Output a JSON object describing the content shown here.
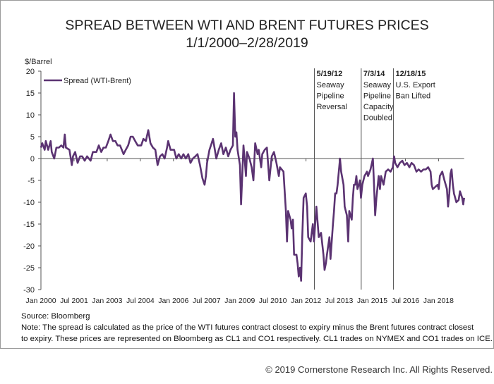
{
  "chart_data": {
    "type": "line",
    "title": "SPREAD BETWEEN WTI AND BRENT FUTURES PRICES",
    "subtitle": "1/1/2000–2/28/2019",
    "ylabel": "$/Barrel",
    "xlabel": "",
    "ylim": [
      -30,
      20
    ],
    "yticks": [
      20,
      15,
      10,
      5,
      0,
      -5,
      -10,
      -15,
      -20,
      -25,
      -30
    ],
    "xlim": [
      2000.0,
      2019.16
    ],
    "xticks": [
      {
        "label": "Jan 2000",
        "x": 2000.0
      },
      {
        "label": "Jul 2001",
        "x": 2001.5
      },
      {
        "label": "Jan 2003",
        "x": 2003.0
      },
      {
        "label": "Jul 2004",
        "x": 2004.5
      },
      {
        "label": "Jan 2006",
        "x": 2006.0
      },
      {
        "label": "Jul 2007",
        "x": 2007.5
      },
      {
        "label": "Jan 2009",
        "x": 2009.0
      },
      {
        "label": "Jul 2010",
        "x": 2010.5
      },
      {
        "label": "Jan 2012",
        "x": 2012.0
      },
      {
        "label": "Jul 2013",
        "x": 2013.5
      },
      {
        "label": "Jan 2015",
        "x": 2015.0
      },
      {
        "label": "Jul 2016",
        "x": 2016.5
      },
      {
        "label": "Jan 2018",
        "x": 2018.0
      }
    ],
    "grid": false,
    "legend": {
      "placement": "top-left",
      "entries": [
        "Spread (WTI-Brent)"
      ]
    },
    "series": [
      {
        "name": "Spread (WTI-Brent)",
        "color": "#5b3372",
        "points": [
          [
            2000.0,
            2.5
          ],
          [
            2000.06,
            3.5
          ],
          [
            2000.17,
            2
          ],
          [
            2000.22,
            4
          ],
          [
            2000.33,
            2
          ],
          [
            2000.44,
            4
          ],
          [
            2000.49,
            1.5
          ],
          [
            2000.6,
            0
          ],
          [
            2000.7,
            2.5
          ],
          [
            2000.81,
            2.5
          ],
          [
            2000.92,
            3
          ],
          [
            2001.02,
            2.5
          ],
          [
            2001.08,
            5.5
          ],
          [
            2001.13,
            2.5
          ],
          [
            2001.29,
            2
          ],
          [
            2001.4,
            -1.5
          ],
          [
            2001.45,
            0.5
          ],
          [
            2001.55,
            1.5
          ],
          [
            2001.66,
            -1
          ],
          [
            2001.77,
            0.5
          ],
          [
            2001.87,
            0.5
          ],
          [
            2001.98,
            -0.5
          ],
          [
            2002.09,
            0.5
          ],
          [
            2002.25,
            -0.5
          ],
          [
            2002.35,
            1.5
          ],
          [
            2002.51,
            1.5
          ],
          [
            2002.62,
            3
          ],
          [
            2002.73,
            1.5
          ],
          [
            2002.83,
            2.5
          ],
          [
            2002.94,
            2.5
          ],
          [
            2003.05,
            4
          ],
          [
            2003.15,
            5.5
          ],
          [
            2003.26,
            4
          ],
          [
            2003.37,
            4
          ],
          [
            2003.47,
            3
          ],
          [
            2003.58,
            3
          ],
          [
            2003.74,
            1
          ],
          [
            2003.84,
            2
          ],
          [
            2003.95,
            3
          ],
          [
            2004.06,
            5
          ],
          [
            2004.16,
            5
          ],
          [
            2004.27,
            4
          ],
          [
            2004.38,
            3
          ],
          [
            2004.54,
            3
          ],
          [
            2004.64,
            4.5
          ],
          [
            2004.75,
            4
          ],
          [
            2004.86,
            6.5
          ],
          [
            2004.96,
            3.5
          ],
          [
            2005.07,
            2.5
          ],
          [
            2005.18,
            2
          ],
          [
            2005.28,
            -1.5
          ],
          [
            2005.39,
            0.5
          ],
          [
            2005.5,
            1
          ],
          [
            2005.6,
            0
          ],
          [
            2005.71,
            2.5
          ],
          [
            2005.76,
            4
          ],
          [
            2005.87,
            2
          ],
          [
            2006.03,
            2
          ],
          [
            2006.13,
            0
          ],
          [
            2006.24,
            1
          ],
          [
            2006.35,
            0
          ],
          [
            2006.45,
            1
          ],
          [
            2006.56,
            0
          ],
          [
            2006.67,
            1
          ],
          [
            2006.77,
            -1
          ],
          [
            2006.88,
            0
          ],
          [
            2006.99,
            0.5
          ],
          [
            2007.09,
            1
          ],
          [
            2007.2,
            -1.5
          ],
          [
            2007.31,
            -4.5
          ],
          [
            2007.41,
            -6
          ],
          [
            2007.47,
            -4
          ],
          [
            2007.52,
            -1
          ],
          [
            2007.63,
            2
          ],
          [
            2007.73,
            3.5
          ],
          [
            2007.79,
            4.5
          ],
          [
            2007.84,
            3
          ],
          [
            2007.94,
            0
          ],
          [
            2008.05,
            2
          ],
          [
            2008.16,
            3.5
          ],
          [
            2008.26,
            1
          ],
          [
            2008.37,
            2.5
          ],
          [
            2008.48,
            0.5
          ],
          [
            2008.58,
            2
          ],
          [
            2008.69,
            3
          ],
          [
            2008.74,
            15
          ],
          [
            2008.8,
            5
          ],
          [
            2008.85,
            6
          ],
          [
            2008.9,
            2
          ],
          [
            2009.01,
            -1.5
          ],
          [
            2009.06,
            -10.5
          ],
          [
            2009.12,
            -3
          ],
          [
            2009.17,
            3
          ],
          [
            2009.22,
            0
          ],
          [
            2009.28,
            -4
          ],
          [
            2009.33,
            1.5
          ],
          [
            2009.44,
            0
          ],
          [
            2009.54,
            -2
          ],
          [
            2009.62,
            -5
          ],
          [
            2009.7,
            3.5
          ],
          [
            2009.81,
            1
          ],
          [
            2009.86,
            2
          ],
          [
            2009.97,
            -2
          ],
          [
            2010.02,
            1
          ],
          [
            2010.13,
            2
          ],
          [
            2010.23,
            2.5
          ],
          [
            2010.34,
            -5
          ],
          [
            2010.45,
            0.5
          ],
          [
            2010.55,
            1.5
          ],
          [
            2010.66,
            -1
          ],
          [
            2010.77,
            -4
          ],
          [
            2010.82,
            -2
          ],
          [
            2010.98,
            -3
          ],
          [
            2011.03,
            -7
          ],
          [
            2011.09,
            -12
          ],
          [
            2011.14,
            -19
          ],
          [
            2011.19,
            -12
          ],
          [
            2011.3,
            -14
          ],
          [
            2011.35,
            -16
          ],
          [
            2011.41,
            -14
          ],
          [
            2011.46,
            -22
          ],
          [
            2011.57,
            -22
          ],
          [
            2011.62,
            -24
          ],
          [
            2011.67,
            -27
          ],
          [
            2011.73,
            -25
          ],
          [
            2011.78,
            -28
          ],
          [
            2011.83,
            -18
          ],
          [
            2011.89,
            -9
          ],
          [
            2011.99,
            -8
          ],
          [
            2012.05,
            -11
          ],
          [
            2012.1,
            -18
          ],
          [
            2012.21,
            -19
          ],
          [
            2012.26,
            -17
          ],
          [
            2012.31,
            -15
          ],
          [
            2012.36,
            -19
          ],
          [
            2012.47,
            -11
          ],
          [
            2012.58,
            -18
          ],
          [
            2012.68,
            -17
          ],
          [
            2012.79,
            -22
          ],
          [
            2012.84,
            -25.5
          ],
          [
            2012.9,
            -24
          ],
          [
            2012.95,
            -22
          ],
          [
            2013.06,
            -18
          ],
          [
            2013.11,
            -23
          ],
          [
            2013.22,
            -15
          ],
          [
            2013.27,
            -12
          ],
          [
            2013.32,
            -8
          ],
          [
            2013.38,
            -8
          ],
          [
            2013.43,
            -6
          ],
          [
            2013.54,
            0
          ],
          [
            2013.59,
            -3
          ],
          [
            2013.7,
            -6
          ],
          [
            2013.75,
            -11
          ],
          [
            2013.85,
            -13
          ],
          [
            2013.91,
            -19
          ],
          [
            2013.96,
            -12
          ],
          [
            2014.07,
            -14
          ],
          [
            2014.12,
            -9
          ],
          [
            2014.17,
            -6
          ],
          [
            2014.23,
            -6
          ],
          [
            2014.28,
            -4
          ],
          [
            2014.33,
            -7
          ],
          [
            2014.39,
            -6
          ],
          [
            2014.44,
            -5
          ],
          [
            2014.49,
            -9
          ],
          [
            2014.55,
            -6
          ],
          [
            2014.65,
            -4
          ],
          [
            2014.76,
            -3
          ],
          [
            2014.81,
            -4
          ],
          [
            2014.92,
            -2.5
          ],
          [
            2015.03,
            0
          ],
          [
            2015.08,
            -6
          ],
          [
            2015.13,
            -13
          ],
          [
            2015.19,
            -9
          ],
          [
            2015.29,
            -4
          ],
          [
            2015.35,
            -7
          ],
          [
            2015.4,
            -4
          ],
          [
            2015.51,
            -6
          ],
          [
            2015.61,
            -3
          ],
          [
            2015.72,
            -2.5
          ],
          [
            2015.83,
            -3
          ],
          [
            2015.93,
            -2
          ],
          [
            2015.99,
            0.5
          ],
          [
            2016.04,
            -1
          ],
          [
            2016.14,
            -2
          ],
          [
            2016.25,
            -1
          ],
          [
            2016.36,
            -0.5
          ],
          [
            2016.46,
            -1.5
          ],
          [
            2016.57,
            -1
          ],
          [
            2016.68,
            -2
          ],
          [
            2016.78,
            -1
          ],
          [
            2016.89,
            -1.5
          ],
          [
            2017.0,
            -3
          ],
          [
            2017.1,
            -2.5
          ],
          [
            2017.21,
            -3
          ],
          [
            2017.32,
            -2.5
          ],
          [
            2017.42,
            -2.5
          ],
          [
            2017.53,
            -2
          ],
          [
            2017.64,
            -3
          ],
          [
            2017.69,
            -6
          ],
          [
            2017.74,
            -7
          ],
          [
            2017.85,
            -6.5
          ],
          [
            2017.96,
            -6
          ],
          [
            2018.01,
            -7
          ],
          [
            2018.06,
            -4
          ],
          [
            2018.17,
            -3
          ],
          [
            2018.27,
            -5
          ],
          [
            2018.38,
            -7
          ],
          [
            2018.43,
            -11
          ],
          [
            2018.49,
            -8
          ],
          [
            2018.54,
            -3.5
          ],
          [
            2018.59,
            -2.5
          ],
          [
            2018.65,
            -6
          ],
          [
            2018.7,
            -8
          ],
          [
            2018.81,
            -10
          ],
          [
            2018.91,
            -9.5
          ],
          [
            2018.97,
            -7.5
          ],
          [
            2019.07,
            -9
          ],
          [
            2019.12,
            -10.5
          ],
          [
            2019.16,
            -9
          ]
        ]
      }
    ],
    "annotations": [
      {
        "x": 2012.38,
        "date": "5/19/12",
        "lines": [
          "Seaway",
          "Pipeline",
          "Reversal"
        ]
      },
      {
        "x": 2014.5,
        "date": "7/3/14",
        "lines": [
          "Seaway",
          "Pipeline",
          "Capacity",
          "Doubled"
        ]
      },
      {
        "x": 2015.96,
        "date": "12/18/15",
        "lines": [
          "U.S. Export",
          "Ban Lifted"
        ]
      }
    ]
  },
  "footer": {
    "source": "Source: Bloomberg",
    "note_line1": "Note: The spread is calculated as the price of the WTI futures contract closest to expiry minus the Brent futures contract closest",
    "note_line2": "to expiry. These prices are represented on Bloomberg as CL1 and CO1 respectively. CL1 trades on NYMEX and CO1 trades on ICE.",
    "copyright": "© 2019 Cornerstone Research Inc. All Rights Reserved."
  }
}
